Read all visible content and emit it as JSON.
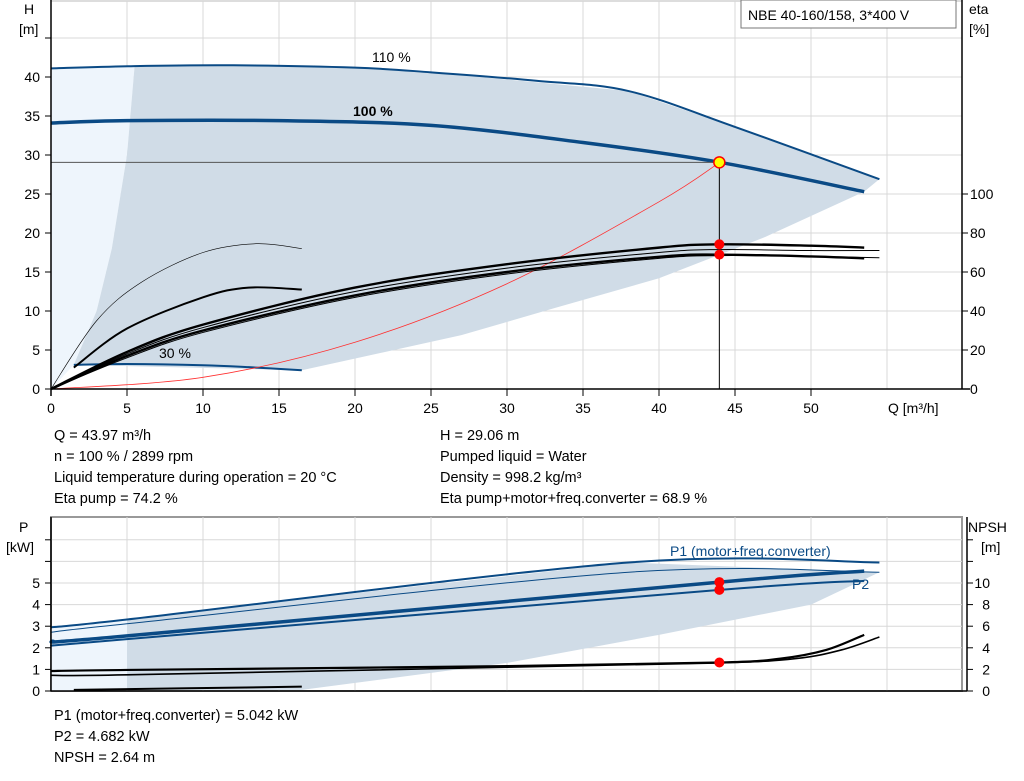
{
  "chart_data": [
    {
      "type": "line",
      "title": "NBE 40-160/158, 3*400 V",
      "xlabel": "Q [m³/h]",
      "ylabel": "H\n[m]",
      "ylabel_left_lines": [
        "H",
        "[m]"
      ],
      "ylabel_right_lines": [
        "eta",
        "[%]"
      ],
      "xlim": [
        0,
        60
      ],
      "ylim": [
        0,
        48
      ],
      "y2lim": [
        0,
        200
      ],
      "xticks": [
        0,
        5,
        10,
        15,
        20,
        25,
        30,
        35,
        40,
        45,
        50
      ],
      "yticks": [
        0,
        5,
        10,
        15,
        20,
        25,
        30,
        35,
        40
      ],
      "y2ticks": [
        0,
        20,
        40,
        60,
        80,
        100
      ],
      "grid": true,
      "curve_labels": {
        "c110": "110 %",
        "c100": "100 %",
        "c30": "30 %"
      },
      "colors": {
        "curve": "#0a4a85",
        "area": "#d0dce7",
        "area_light": "#eef5fc",
        "system": "#ff3030",
        "point": "#ff0000",
        "duty": "#ffff00"
      },
      "operating_range": {
        "upper": [
          [
            5.5,
            41.4
          ],
          [
            12,
            41.5
          ],
          [
            20,
            41.2
          ],
          [
            25,
            40.6
          ],
          [
            38,
            38.2
          ],
          [
            45,
            33.6
          ],
          [
            54.5,
            26.9
          ]
        ],
        "lower": [
          [
            53.5,
            25.3
          ],
          [
            47,
            19.5
          ],
          [
            40,
            14.2
          ],
          [
            33,
            10.3
          ],
          [
            27,
            6.9
          ],
          [
            16.5,
            2.4
          ]
        ],
        "left": [
          [
            1.5,
            3.1
          ],
          [
            3,
            10
          ],
          [
            4,
            18
          ],
          [
            5,
            30
          ],
          [
            5.5,
            41.4
          ]
        ]
      },
      "series": [
        {
          "name": "110 %",
          "axis": "H",
          "points": [
            [
              0,
              41.1
            ],
            [
              5.5,
              41.4
            ],
            [
              12,
              41.5
            ],
            [
              20,
              41.2
            ],
            [
              25,
              40.6
            ],
            [
              32,
              39.5
            ],
            [
              38,
              38.2
            ],
            [
              45,
              33.6
            ],
            [
              54.5,
              26.9
            ]
          ]
        },
        {
          "name": "100 %",
          "axis": "H",
          "points": [
            [
              0,
              34.1
            ],
            [
              5,
              34.4
            ],
            [
              15,
              34.4
            ],
            [
              25,
              33.8
            ],
            [
              35,
              31.6
            ],
            [
              44,
              29.06
            ],
            [
              53.5,
              25.3
            ]
          ]
        },
        {
          "name": "30 %",
          "axis": "H",
          "points": [
            [
              1.5,
              3.1
            ],
            [
              5,
              3.2
            ],
            [
              10,
              3.05
            ],
            [
              13,
              2.8
            ],
            [
              16.5,
              2.4
            ]
          ]
        },
        {
          "axis": "H",
          "points": [
            [
              0,
              0
            ],
            [
              10,
              1.5
            ],
            [
              20,
              6.0
            ],
            [
              30,
              13.5
            ],
            [
              40,
              24.0
            ],
            [
              44,
              29.06
            ]
          ]
        },
        {
          "axis": "eta",
          "points": [
            [
              0,
              0
            ],
            [
              3,
              35
            ],
            [
              6,
              55
            ],
            [
              10,
              70
            ],
            [
              13.5,
              74.5
            ],
            [
              16.5,
              72
            ]
          ]
        },
        {
          "axis": "eta",
          "points": [
            [
              1.5,
              11
            ],
            [
              5,
              31
            ],
            [
              10,
              47
            ],
            [
              13,
              52
            ],
            [
              16.5,
              51
            ]
          ]
        },
        {
          "axis": "eta",
          "points": [
            [
              0,
              0
            ],
            [
              5,
              19
            ],
            [
              10,
              33
            ],
            [
              20,
              52
            ],
            [
              30,
              64
            ],
            [
              40,
              72.5
            ],
            [
              44,
              74.2
            ],
            [
              50,
              73.5
            ],
            [
              53.5,
              72.5
            ]
          ]
        },
        {
          "axis": "eta",
          "points": [
            [
              0,
              0
            ],
            [
              5,
              18
            ],
            [
              10,
              31.5
            ],
            [
              20,
              50
            ],
            [
              30,
              62
            ],
            [
              40,
              70
            ],
            [
              44,
              71.5
            ],
            [
              50,
              71
            ],
            [
              54.5,
              71
            ]
          ]
        },
        {
          "axis": "eta",
          "points": [
            [
              0,
              0
            ],
            [
              5,
              17
            ],
            [
              10,
              30
            ],
            [
              20,
              48
            ],
            [
              30,
              60
            ],
            [
              40,
              67.8
            ],
            [
              44,
              68.9
            ],
            [
              50,
              68
            ],
            [
              53.5,
              67
            ]
          ]
        },
        {
          "axis": "eta",
          "points": [
            [
              0,
              0
            ],
            [
              5,
              16
            ],
            [
              10,
              29
            ],
            [
              20,
              47
            ],
            [
              30,
              59
            ],
            [
              40,
              67
            ],
            [
              44,
              68.4
            ],
            [
              50,
              68
            ],
            [
              54.5,
              67.3
            ]
          ]
        }
      ],
      "duty_point": {
        "Q": 43.97,
        "H": 29.06,
        "eta_pump": 74.2,
        "eta_total": 68.9
      }
    },
    {
      "type": "line",
      "ylabel_left_lines": [
        "P",
        "[kW]"
      ],
      "ylabel_right_lines": [
        "NPSH",
        "[m]"
      ],
      "ylim": [
        0,
        8
      ],
      "y2lim": [
        0,
        16
      ],
      "yticks": [
        0,
        1,
        2,
        3,
        4,
        5
      ],
      "y2ticks": [
        0,
        2,
        4,
        6,
        8,
        10
      ],
      "grid": true,
      "curve_labels": {
        "p1": "P1 (motor+freq.converter)",
        "p2": "P2"
      },
      "operating_range": {
        "upper": [
          [
            5,
            3.35
          ],
          [
            38,
            5.95
          ],
          [
            54.5,
            5.5
          ]
        ],
        "lower": [
          [
            50,
            4.0
          ],
          [
            40,
            2.6
          ],
          [
            30,
            1.3
          ],
          [
            16.5,
            0.05
          ],
          [
            5,
            0.05
          ]
        ]
      },
      "series": [
        {
          "axis": "P",
          "points": [
            [
              0,
              2.95
            ],
            [
              5.5,
              3.35
            ],
            [
              38,
              5.95
            ],
            [
              54.5,
              5.95
            ]
          ]
        },
        {
          "axis": "P",
          "points": [
            [
              0,
              2.72
            ],
            [
              5.5,
              3.15
            ],
            [
              38,
              5.5
            ],
            [
              54.5,
              5.5
            ]
          ]
        },
        {
          "name": "P1 (motor+freq.converter)",
          "axis": "P",
          "points": [
            [
              0,
              2.3
            ],
            [
              5,
              2.55
            ],
            [
              44,
              5.042
            ],
            [
              53.5,
              5.55
            ]
          ]
        },
        {
          "name": "P2",
          "axis": "P",
          "points": [
            [
              0,
              2.1
            ],
            [
              5,
              2.4
            ],
            [
              44,
              4.682
            ],
            [
              53.5,
              5.1
            ]
          ]
        },
        {
          "axis": "P",
          "points": [
            [
              1.5,
              0.05
            ],
            [
              16.5,
              0.2
            ]
          ]
        },
        {
          "axis": "NPSH",
          "points": [
            [
              0,
              1.85
            ],
            [
              5,
              1.95
            ],
            [
              30,
              2.3
            ],
            [
              44,
              2.64
            ],
            [
              48,
              3.0
            ],
            [
              51,
              3.8
            ],
            [
              53.5,
              5.2
            ]
          ]
        },
        {
          "axis": "NPSH",
          "points": [
            [
              0,
              1.45
            ],
            [
              5,
              1.5
            ],
            [
              30,
              2.2
            ],
            [
              44,
              2.6
            ],
            [
              49,
              3.0
            ],
            [
              52,
              3.8
            ],
            [
              54.5,
              5.0
            ]
          ]
        }
      ],
      "duty_point": {
        "P1": 5.042,
        "P2": 4.682,
        "NPSH": 2.64
      }
    }
  ],
  "info_top": {
    "left": [
      "Q = 43.97 m³/h",
      "n = 100 % / 2899 rpm",
      "Liquid temperature during operation = 20 °C",
      "Eta pump = 74.2 %"
    ],
    "right": [
      "H = 29.06 m",
      "Pumped liquid = Water",
      "Density = 998.2 kg/m³",
      "Eta pump+motor+freq.converter = 68.9 %"
    ]
  },
  "info_bottom": [
    "P1 (motor+freq.converter) = 5.042 kW",
    "P2 = 4.682 kW",
    "NPSH = 2.64 m"
  ]
}
